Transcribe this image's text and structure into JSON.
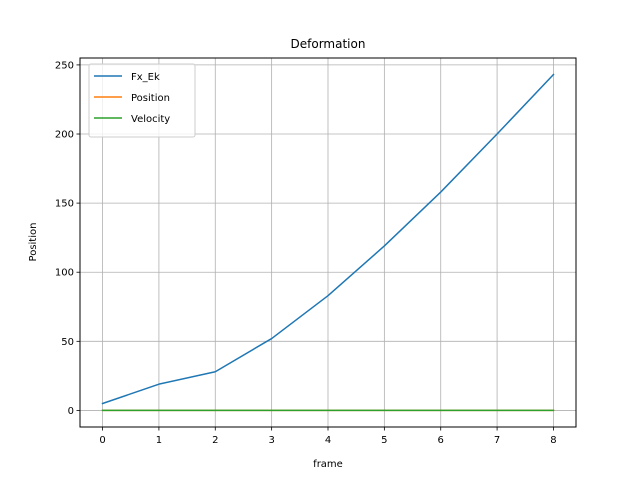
{
  "chart_data": {
    "type": "line",
    "title": "Deformation",
    "xlabel": "frame",
    "ylabel": "Position",
    "x": [
      0,
      1,
      2,
      3,
      4,
      5,
      6,
      7,
      8
    ],
    "xlim": [
      -0.4,
      8.4
    ],
    "ylim": [
      -12,
      255
    ],
    "xticks": [
      0,
      1,
      2,
      3,
      4,
      5,
      6,
      7,
      8
    ],
    "yticks": [
      0,
      50,
      100,
      150,
      200,
      250
    ],
    "grid": true,
    "legend_position": "top-left",
    "series": [
      {
        "name": "Fx_Ek",
        "color": "#1f77b4",
        "values": [
          5,
          19,
          28,
          52,
          83,
          119,
          158,
          200,
          243
        ]
      },
      {
        "name": "Position",
        "color": "#ff7f0e",
        "values": [
          0,
          0,
          0,
          0,
          0,
          0,
          0,
          0,
          0
        ]
      },
      {
        "name": "Velocity",
        "color": "#2ca02c",
        "values": [
          0,
          0,
          0,
          0,
          0,
          0,
          0,
          0,
          0
        ]
      }
    ]
  }
}
